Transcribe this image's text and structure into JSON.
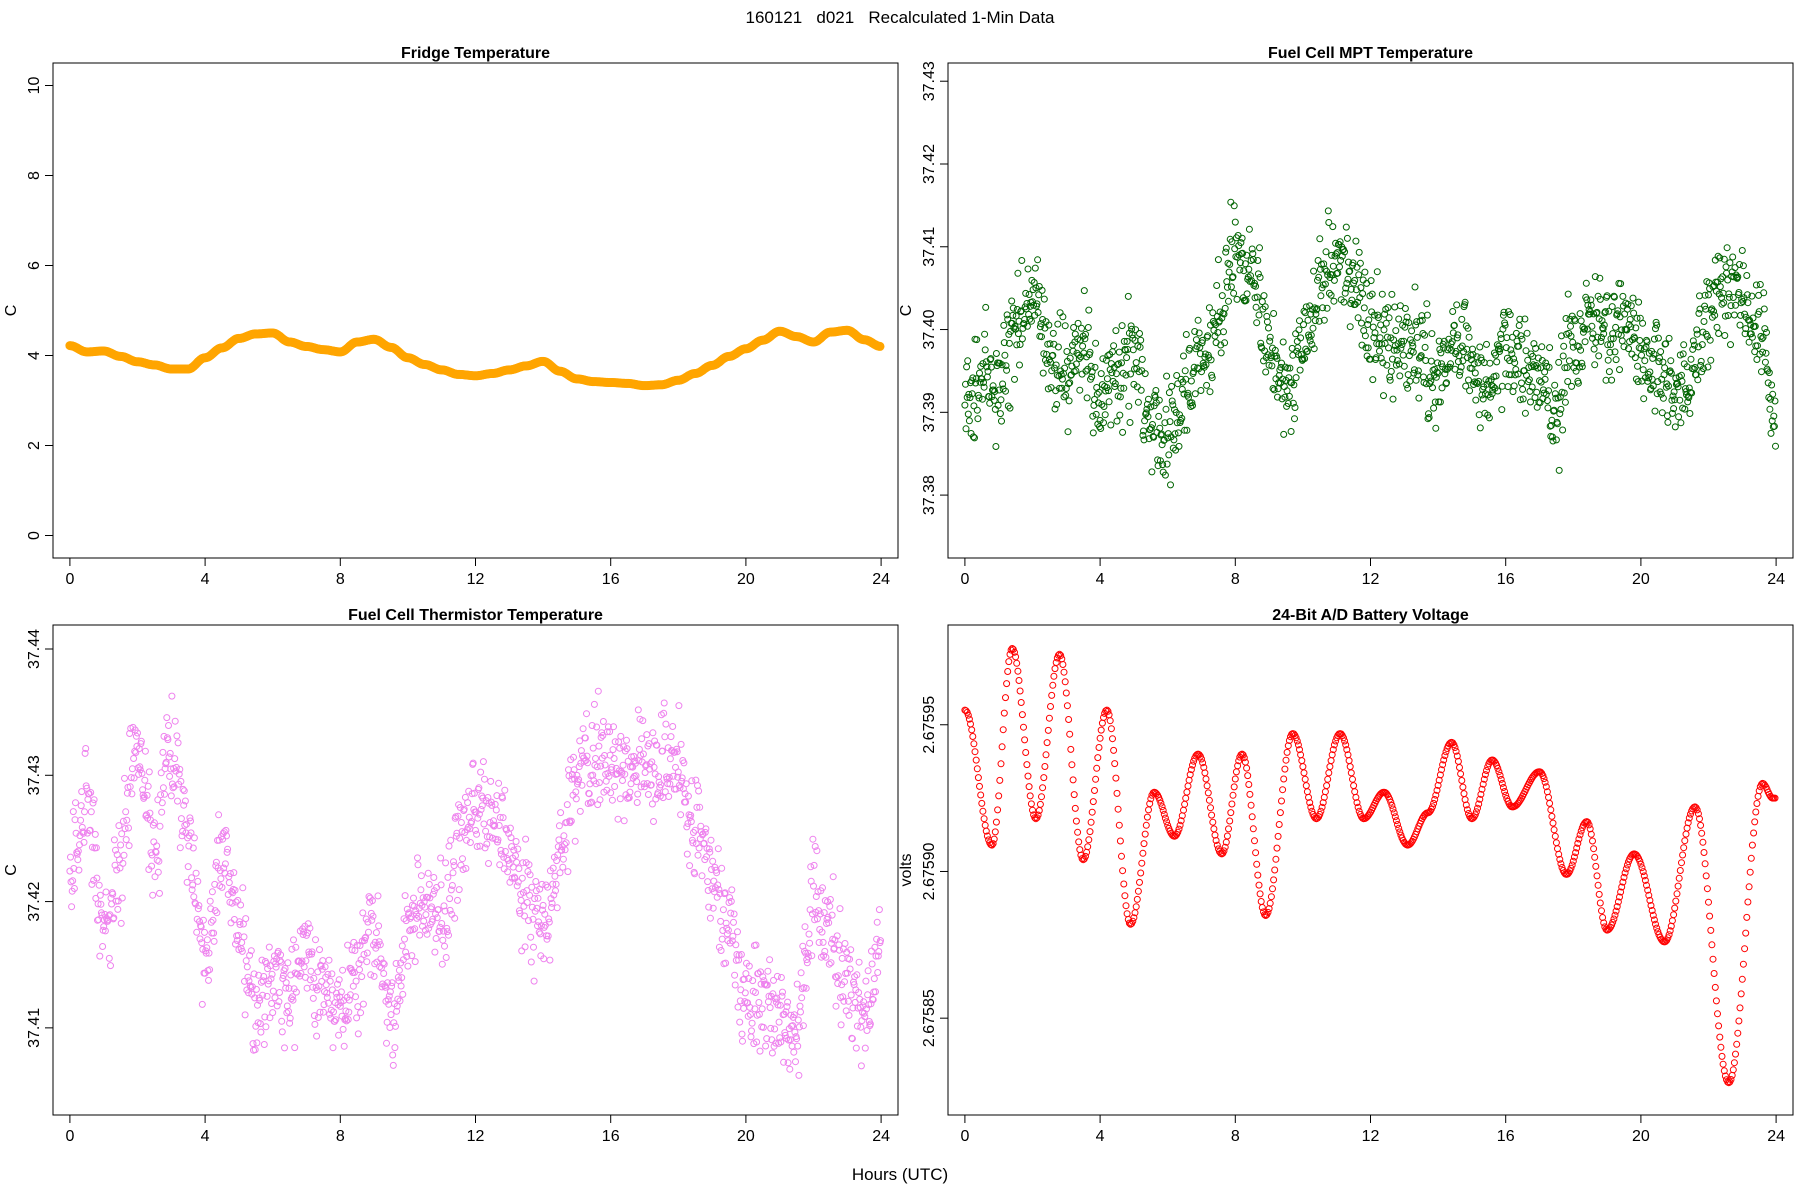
{
  "page": {
    "title": "160121   d021   Recalculated 1-Min Data",
    "x_axis_label": "Hours (UTC)"
  },
  "chart_data": [
    {
      "id": "fridge",
      "type": "scatter",
      "title": "Fridge Temperature",
      "xlabel": "Hours (UTC)",
      "ylabel": "C",
      "color": "#FFA500",
      "marker": "open-circle",
      "xlim": [
        -0.5,
        24.5
      ],
      "ylim": [
        -0.5,
        10.5
      ],
      "xticks": [
        0,
        4,
        8,
        12,
        16,
        20,
        24
      ],
      "yticks": [
        0,
        2,
        4,
        6,
        8,
        10
      ],
      "ytick_labels": [
        "0",
        "2",
        "4",
        "6",
        "8",
        "10"
      ],
      "series": [
        {
          "name": "Fridge Temperature",
          "x": [
            0,
            0.5,
            1,
            1.5,
            2,
            2.5,
            3,
            3.5,
            4,
            4.5,
            5,
            5.5,
            6,
            6.5,
            7,
            7.5,
            8,
            8.5,
            9,
            9.5,
            10,
            10.5,
            11,
            11.5,
            12,
            12.5,
            13,
            13.5,
            14,
            14.5,
            15,
            15.5,
            16,
            16.5,
            17,
            17.5,
            18,
            18.5,
            19,
            19.5,
            20,
            20.5,
            21,
            21.5,
            22,
            22.5,
            23,
            23.5,
            24
          ],
          "y": [
            4.22,
            4.08,
            4.1,
            3.98,
            3.86,
            3.79,
            3.7,
            3.7,
            3.95,
            4.17,
            4.38,
            4.48,
            4.5,
            4.3,
            4.2,
            4.13,
            4.08,
            4.3,
            4.36,
            4.18,
            3.95,
            3.8,
            3.68,
            3.58,
            3.55,
            3.6,
            3.68,
            3.77,
            3.87,
            3.65,
            3.48,
            3.42,
            3.4,
            3.38,
            3.33,
            3.35,
            3.45,
            3.6,
            3.78,
            3.98,
            4.15,
            4.34,
            4.54,
            4.42,
            4.3,
            4.52,
            4.56,
            4.35,
            4.2
          ]
        }
      ]
    },
    {
      "id": "fuel-cell-mpt",
      "type": "scatter",
      "title": "Fuel Cell MPT Temperature",
      "xlabel": "Hours (UTC)",
      "ylabel": "C",
      "color": "#006400",
      "marker": "open-circle",
      "xlim": [
        -0.5,
        24.5
      ],
      "ylim": [
        37.3724,
        37.4322
      ],
      "xticks": [
        0,
        4,
        8,
        12,
        16,
        20,
        24
      ],
      "yticks": [
        37.38,
        37.39,
        37.4,
        37.41,
        37.42,
        37.43
      ],
      "ytick_labels": [
        "37.38",
        "37.39",
        "37.40",
        "37.41",
        "37.42",
        "37.43"
      ],
      "noise": 0.009,
      "range": [
        37.373,
        37.431
      ],
      "series": [
        {
          "name": "Fuel Cell MPT Temperature",
          "x": [
            0,
            0.5,
            1,
            1.5,
            2,
            2.5,
            3,
            3.5,
            4,
            4.5,
            5,
            5.5,
            6,
            6.5,
            7,
            7.5,
            8,
            8.5,
            9,
            9.5,
            10,
            10.5,
            11,
            11.5,
            12,
            12.5,
            13,
            13.5,
            14,
            14.5,
            15,
            15.5,
            16,
            16.5,
            17,
            17.5,
            18,
            18.5,
            19,
            19.5,
            20,
            20.5,
            21,
            21.5,
            22,
            22.5,
            23,
            23.5,
            24
          ],
          "y": [
            37.39,
            37.396,
            37.392,
            37.4,
            37.404,
            37.397,
            37.395,
            37.398,
            37.392,
            37.394,
            37.397,
            37.39,
            37.388,
            37.392,
            37.396,
            37.402,
            37.41,
            37.406,
            37.398,
            37.392,
            37.399,
            37.404,
            37.408,
            37.406,
            37.4,
            37.399,
            37.398,
            37.397,
            37.394,
            37.398,
            37.396,
            37.392,
            37.398,
            37.396,
            37.394,
            37.39,
            37.398,
            37.402,
            37.399,
            37.401,
            37.398,
            37.394,
            37.392,
            37.394,
            37.402,
            37.405,
            37.403,
            37.4,
            37.39
          ]
        }
      ]
    },
    {
      "id": "fuel-cell-thermistor",
      "type": "scatter",
      "title": "Fuel Cell Thermistor Temperature",
      "xlabel": "Hours (UTC)",
      "ylabel": "C",
      "color": "#EE82EE",
      "marker": "open-circle",
      "xlim": [
        -0.5,
        24.5
      ],
      "ylim": [
        37.4031,
        37.4419
      ],
      "xticks": [
        0,
        4,
        8,
        12,
        16,
        20,
        24
      ],
      "yticks": [
        37.41,
        37.42,
        37.43,
        37.44
      ],
      "ytick_labels": [
        "37.41",
        "37.42",
        "37.43",
        "37.44"
      ],
      "noise": 0.006,
      "range": [
        37.404,
        37.441
      ],
      "series": [
        {
          "name": "Fuel Cell Thermistor Temperature",
          "x": [
            0,
            0.5,
            1,
            1.5,
            2,
            2.5,
            3,
            3.5,
            4,
            4.5,
            5,
            5.5,
            6,
            6.5,
            7,
            7.5,
            8,
            8.5,
            9,
            9.5,
            10,
            10.5,
            11,
            11.5,
            12,
            12.5,
            13,
            13.5,
            14,
            14.5,
            15,
            15.5,
            16,
            16.5,
            17,
            17.5,
            18,
            18.5,
            19,
            19.5,
            20,
            20.5,
            21,
            21.5,
            22,
            22.5,
            23,
            23.5,
            24
          ],
          "y": [
            37.422,
            37.427,
            37.418,
            37.423,
            37.433,
            37.424,
            37.432,
            37.425,
            37.415,
            37.424,
            37.418,
            37.411,
            37.414,
            37.412,
            37.416,
            37.413,
            37.411,
            37.415,
            37.418,
            37.411,
            37.417,
            37.42,
            37.419,
            37.424,
            37.428,
            37.426,
            37.424,
            37.42,
            37.418,
            37.423,
            37.43,
            37.431,
            37.431,
            37.43,
            37.431,
            37.432,
            37.43,
            37.425,
            37.422,
            37.418,
            37.412,
            37.412,
            37.411,
            37.41,
            37.42,
            37.418,
            37.413,
            37.41,
            37.416
          ]
        }
      ]
    },
    {
      "id": "battery-voltage",
      "type": "scatter",
      "title": "24-Bit A/D Battery Voltage",
      "xlabel": "Hours (UTC)",
      "ylabel": "volts",
      "color": "#FF0000",
      "marker": "open-circle",
      "xlim": [
        -0.5,
        24.5
      ],
      "ylim": [
        2.675817,
        2.675984
      ],
      "xticks": [
        0,
        4,
        8,
        12,
        16,
        20,
        24
      ],
      "yticks": [
        2.67585,
        2.6759,
        2.67595
      ],
      "ytick_labels": [
        "2.67585",
        "2.67590",
        "2.67595"
      ],
      "series": [
        {
          "name": "24-Bit A/D Battery Voltage",
          "x": [
            0,
            0.8,
            1.4,
            2.1,
            2.8,
            3.5,
            4.2,
            4.9,
            5.6,
            6.2,
            6.9,
            7.6,
            8.2,
            8.9,
            9.7,
            10.4,
            11.1,
            11.8,
            12.4,
            13.1,
            13.7,
            14.4,
            15.0,
            15.6,
            16.2,
            17.0,
            17.8,
            18.4,
            19.0,
            19.8,
            20.7,
            21.6,
            22.6,
            23.6,
            23.9
          ],
          "y": [
            2.675955,
            2.675909,
            2.675976,
            2.675918,
            2.675974,
            2.675904,
            2.675955,
            2.675882,
            2.675927,
            2.675912,
            2.67594,
            2.675906,
            2.67594,
            2.675885,
            2.675947,
            2.675918,
            2.675947,
            2.675918,
            2.675927,
            2.675909,
            2.67592,
            2.675944,
            2.675918,
            2.675938,
            2.675922,
            2.675934,
            2.675899,
            2.675917,
            2.67588,
            2.675906,
            2.675876,
            2.675922,
            2.675828,
            2.67593,
            2.675925
          ]
        }
      ]
    }
  ]
}
